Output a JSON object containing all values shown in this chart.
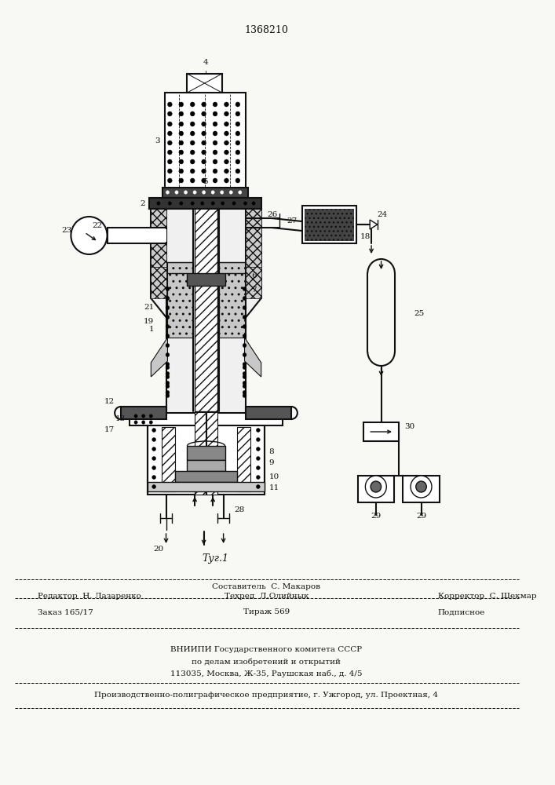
{
  "patent_number": "1368210",
  "fig_label": "Τуг.1",
  "bg": "#f8f8f4",
  "lc": "#111111",
  "footer_row1_center": "Составитель  С. Макаров",
  "footer_row2_left": "Редактор  Н. Лазаренко",
  "footer_row2_center": "Техред  Л.Олийнык",
  "footer_row2_right": "Корректор  С. Шекмар",
  "footer_row3_left": "Заказ 165/17",
  "footer_row3_center": "Тираж 569",
  "footer_row3_right": "Подписное",
  "footer_vniipи1": "ВНИИПИ Государственного комитета СССР",
  "footer_vniipи2": "по делам изобретений и открытий",
  "footer_vniipи3": "113035, Москва, Ж-35, Раушская наб., д. 4/5",
  "footer_last": "Производственно-полиграфическое предприятие, г. Ужгород, ул. Проектная, 4"
}
